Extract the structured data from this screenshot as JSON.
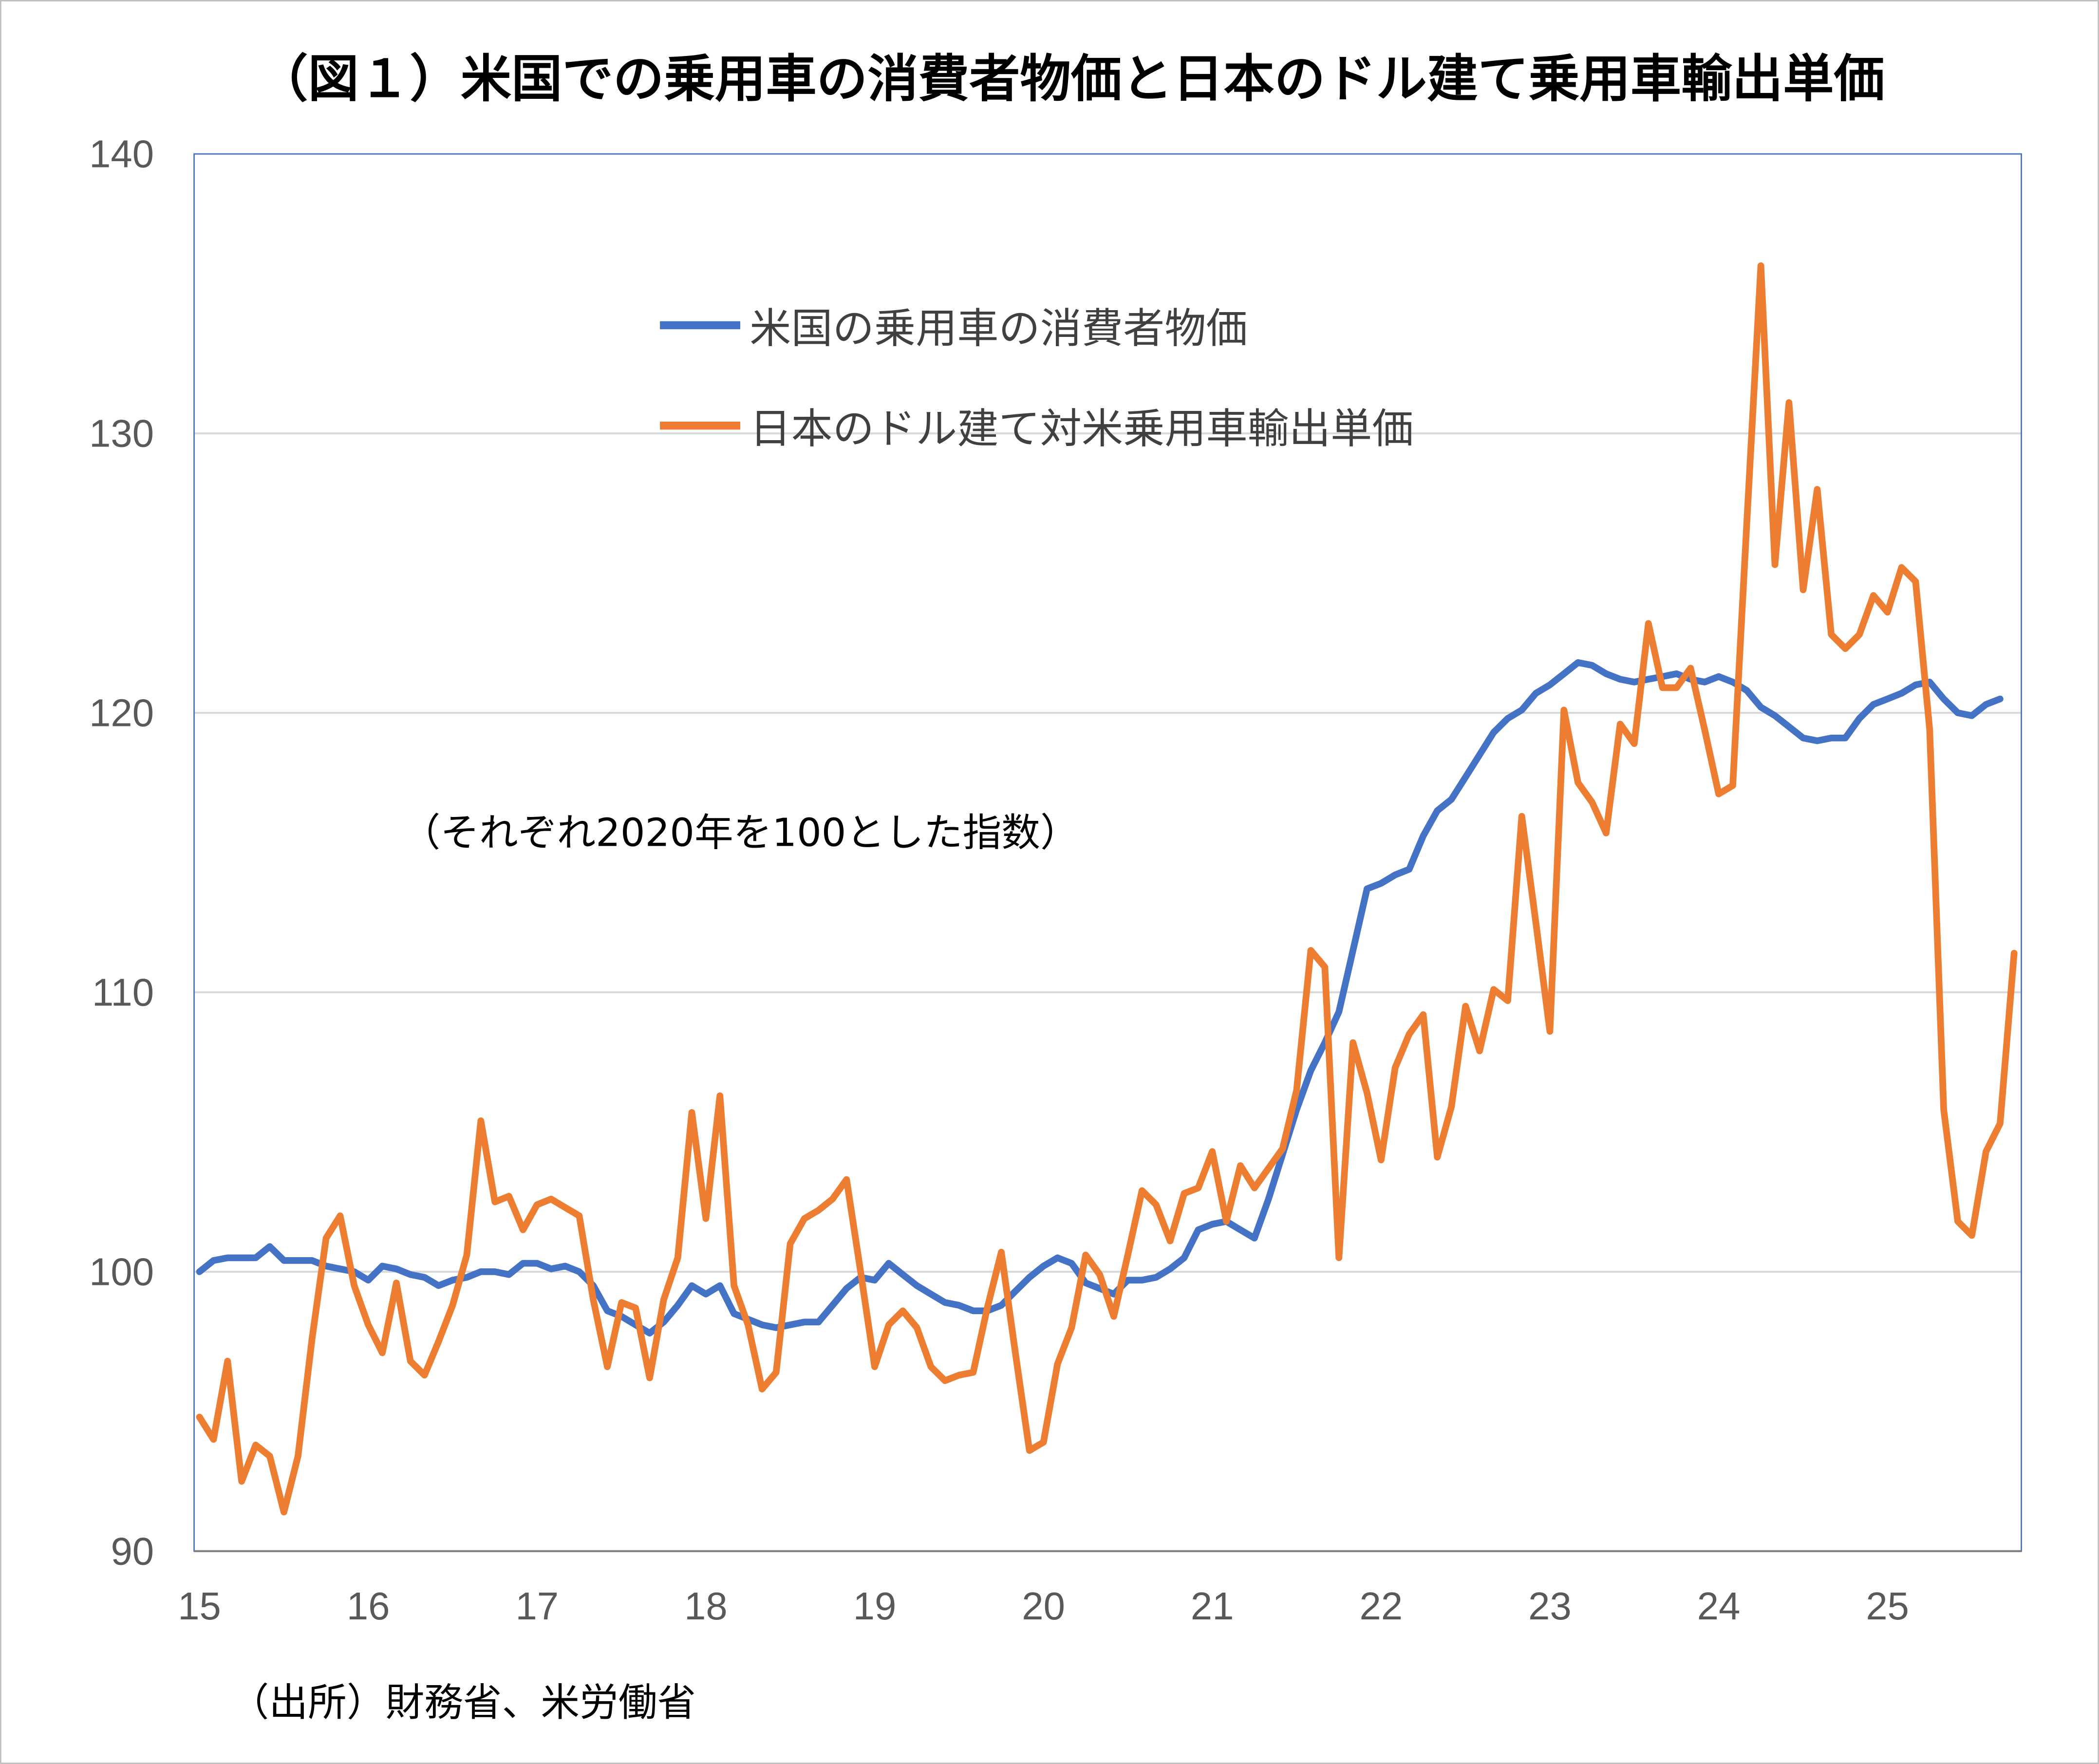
{
  "chart_data": {
    "type": "line",
    "title": "（図１）米国での乗用車の消費者物価と日本のドル建て乗用車輸出単価",
    "annotation": "（それぞれ2020年を100とした指数）",
    "source": "（出所）財務省、米労働省",
    "xlabel": "",
    "ylabel": "",
    "x_ticks": [
      "15",
      "16",
      "17",
      "18",
      "19",
      "20",
      "21",
      "22",
      "23",
      "24",
      "25"
    ],
    "x_start": "2015-01",
    "x_step": "month",
    "ylim": [
      90,
      140
    ],
    "y_ticks": [
      "90",
      "100",
      "110",
      "120",
      "130",
      "140"
    ],
    "grid": "horizontal",
    "legend_position": "top-center",
    "series": [
      {
        "name": "米国の乗用車の消費者物価",
        "color": "#4472C4",
        "values": [
          100.0,
          100.4,
          100.5,
          100.5,
          100.5,
          100.9,
          100.4,
          100.4,
          100.4,
          100.2,
          100.1,
          100.0,
          99.7,
          100.2,
          100.1,
          99.9,
          99.8,
          99.5,
          99.7,
          99.8,
          100.0,
          100.0,
          99.9,
          100.3,
          100.3,
          100.1,
          100.2,
          100.0,
          99.5,
          98.6,
          98.4,
          98.1,
          97.8,
          98.2,
          98.8,
          99.5,
          99.2,
          99.5,
          98.5,
          98.3,
          98.1,
          98.0,
          98.1,
          98.2,
          98.2,
          98.8,
          99.4,
          99.8,
          99.7,
          100.3,
          99.9,
          99.5,
          99.2,
          98.9,
          98.8,
          98.6,
          98.6,
          98.8,
          99.3,
          99.8,
          100.2,
          100.5,
          100.3,
          99.6,
          99.4,
          99.2,
          99.7,
          99.7,
          99.8,
          100.1,
          100.5,
          101.5,
          101.7,
          101.8,
          101.5,
          101.2,
          102.6,
          104.2,
          105.8,
          107.2,
          108.2,
          109.3,
          111.5,
          113.7,
          113.9,
          114.2,
          114.4,
          115.6,
          116.5,
          116.9,
          117.7,
          118.5,
          119.3,
          119.8,
          120.1,
          120.7,
          121.0,
          121.4,
          121.8,
          121.7,
          121.4,
          121.2,
          121.1,
          121.2,
          121.3,
          121.4,
          121.2,
          121.1,
          121.3,
          121.1,
          120.8,
          120.2,
          119.9,
          119.5,
          119.1,
          119.0,
          119.1,
          119.1,
          119.8,
          120.3,
          120.5,
          120.7,
          121.0,
          121.1,
          120.5,
          120.0,
          119.9,
          120.3,
          120.5
        ]
      },
      {
        "name": "日本のドル建て対米乗用車輸出単価",
        "color": "#ED7D31",
        "values": [
          94.8,
          94.0,
          96.8,
          92.5,
          93.8,
          93.4,
          91.4,
          93.4,
          97.6,
          101.2,
          102.0,
          99.5,
          98.1,
          97.1,
          99.6,
          96.8,
          96.3,
          97.5,
          98.8,
          100.6,
          105.4,
          102.5,
          102.7,
          101.5,
          102.4,
          102.6,
          102.3,
          102.0,
          99.0,
          96.6,
          98.9,
          98.7,
          96.2,
          99.0,
          100.5,
          105.7,
          101.9,
          106.3,
          99.5,
          98.1,
          95.8,
          96.4,
          101.0,
          101.9,
          102.2,
          102.6,
          103.3,
          100.0,
          96.6,
          98.1,
          98.6,
          98.0,
          96.6,
          96.1,
          96.3,
          96.4,
          98.7,
          100.7,
          97.1,
          93.6,
          93.9,
          96.7,
          98.0,
          100.6,
          99.9,
          98.4,
          100.6,
          102.9,
          102.4,
          101.1,
          102.8,
          103.0,
          104.3,
          101.8,
          103.8,
          103.0,
          103.7,
          104.4,
          106.5,
          111.5,
          110.9,
          100.5,
          108.2,
          106.4,
          104.0,
          107.3,
          108.5,
          109.2,
          104.1,
          105.9,
          109.5,
          107.9,
          110.1,
          109.7,
          116.3,
          112.5,
          108.6,
          120.1,
          117.5,
          116.8,
          115.7,
          119.6,
          118.9,
          123.2,
          120.9,
          120.9,
          121.6,
          119.4,
          117.1,
          117.4,
          126.8,
          136.0,
          125.3,
          131.1,
          124.4,
          128.0,
          122.8,
          122.3,
          122.8,
          124.2,
          123.6,
          125.2,
          124.7,
          119.4,
          105.8,
          101.8,
          101.3,
          104.3,
          105.3,
          111.4
        ]
      }
    ]
  }
}
